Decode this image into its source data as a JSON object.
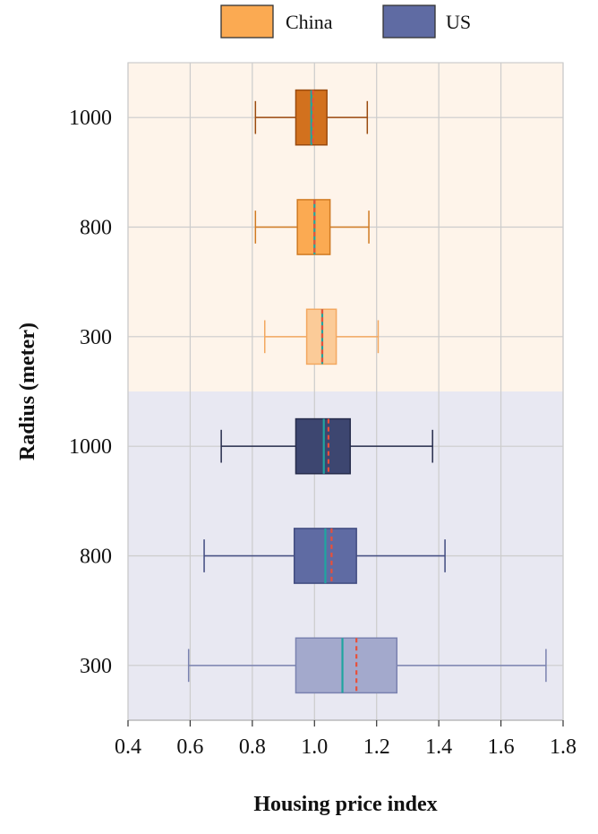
{
  "chart_data": {
    "type": "box",
    "orientation": "horizontal",
    "xlabel": "Housing price index",
    "ylabel": "Radius (meter)",
    "xlim": [
      0.4,
      1.8
    ],
    "xticks": [
      "0.4",
      "0.6",
      "0.8",
      "1.0",
      "1.2",
      "1.4",
      "1.6",
      "1.8"
    ],
    "grid": true,
    "legend_position": "top",
    "groups": [
      {
        "name": "China",
        "legend_color": "#FBAA52",
        "band_color": "#FEF4EA",
        "boxes": [
          {
            "label": "1000",
            "whisker_low": 0.81,
            "q1": 0.94,
            "median": 0.99,
            "mean": 0.995,
            "q3": 1.04,
            "whisker_high": 1.17,
            "fill": "#D2711E",
            "stroke": "#9A4A0E"
          },
          {
            "label": "800",
            "whisker_low": 0.81,
            "q1": 0.945,
            "median": 1.0,
            "mean": 1.0,
            "q3": 1.05,
            "whisker_high": 1.175,
            "fill": "#FBAA52",
            "stroke": "#D07A22"
          },
          {
            "label": "300",
            "whisker_low": 0.84,
            "q1": 0.975,
            "median": 1.025,
            "mean": 1.025,
            "q3": 1.07,
            "whisker_high": 1.205,
            "fill": "#FBCB98",
            "stroke": "#F3A860"
          }
        ]
      },
      {
        "name": "US",
        "legend_color": "#5F6BA3",
        "band_color": "#E8E8F2",
        "boxes": [
          {
            "label": "1000",
            "whisker_low": 0.7,
            "q1": 0.94,
            "median": 1.03,
            "mean": 1.045,
            "q3": 1.115,
            "whisker_high": 1.38,
            "fill": "#3D4670",
            "stroke": "#262C4C"
          },
          {
            "label": "800",
            "whisker_low": 0.645,
            "q1": 0.935,
            "median": 1.035,
            "mean": 1.055,
            "q3": 1.135,
            "whisker_high": 1.42,
            "fill": "#5F6BA3",
            "stroke": "#414B80"
          },
          {
            "label": "300",
            "whisker_low": 0.595,
            "q1": 0.94,
            "median": 1.09,
            "mean": 1.135,
            "q3": 1.265,
            "whisker_high": 1.745,
            "fill": "#A3A9CC",
            "stroke": "#7A82B0"
          }
        ]
      }
    ],
    "median_color": "#1FA5A0",
    "mean_color": "#E8503A"
  }
}
